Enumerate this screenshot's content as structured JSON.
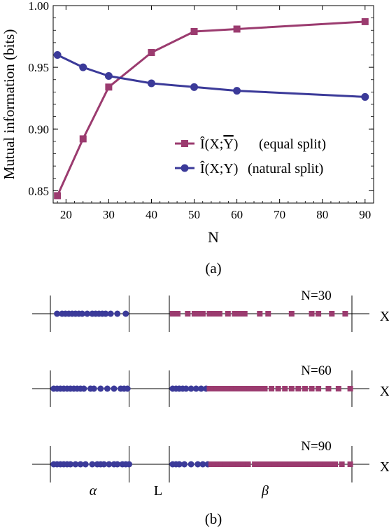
{
  "colors": {
    "equal_split": "#9b3b6f",
    "natural_split": "#3b3a99",
    "axis": "#000000"
  },
  "chart_data": [
    {
      "type": "line",
      "panel_label": "(a)",
      "xlabel": "N",
      "ylabel": "Mutual information (bits)",
      "xlim": [
        17,
        92
      ],
      "ylim": [
        0.84,
        1.0
      ],
      "x_ticks": [
        20,
        30,
        40,
        50,
        60,
        70,
        80,
        90
      ],
      "y_ticks": [
        0.85,
        0.9,
        0.95,
        1.0
      ],
      "x_tick_labels": [
        "20",
        "30",
        "40",
        "50",
        "60",
        "70",
        "80",
        "90"
      ],
      "y_tick_labels": [
        "0.85",
        "0.90",
        "0.95",
        "1.00"
      ],
      "legend_position": "center-right",
      "series": [
        {
          "name": "Î(X;Y̅) (equal split)",
          "legend_text": "(equal split)",
          "marker": "square",
          "color": "#9b3b6f",
          "x": [
            18,
            24,
            30,
            40,
            50,
            60,
            90
          ],
          "y": [
            0.846,
            0.892,
            0.934,
            0.962,
            0.979,
            0.981,
            0.987
          ]
        },
        {
          "name": "Î(X;Y) (natural split)",
          "legend_text": "(natural split)",
          "marker": "circle",
          "color": "#3b3a99",
          "x": [
            18,
            24,
            30,
            40,
            50,
            60,
            90
          ],
          "y": [
            0.96,
            0.95,
            0.943,
            0.937,
            0.934,
            0.931,
            0.926
          ]
        }
      ]
    },
    {
      "type": "scatter",
      "panel_label": "(b)",
      "axis_label": "X",
      "region_labels": {
        "alpha": "α",
        "L": "L",
        "beta": "β"
      },
      "boundaries": [
        0.0,
        0.235,
        0.355,
        0.9
      ],
      "rows": [
        {
          "label": "N=30",
          "circles": [
            0.02,
            0.035,
            0.045,
            0.055,
            0.065,
            0.075,
            0.085,
            0.095,
            0.11,
            0.125,
            0.135,
            0.145,
            0.155,
            0.165,
            0.18,
            0.2,
            0.225
          ],
          "squares": [
            0.365,
            0.38,
            0.41,
            0.43,
            0.44,
            0.455,
            0.475,
            0.49,
            0.505,
            0.53,
            0.55,
            0.565,
            0.58,
            0.625,
            0.65,
            0.72,
            0.78,
            0.8,
            0.84,
            0.88
          ]
        },
        {
          "label": "N=60",
          "circles": [
            0.01,
            0.02,
            0.03,
            0.04,
            0.05,
            0.06,
            0.07,
            0.08,
            0.09,
            0.1,
            0.12,
            0.13,
            0.15,
            0.17,
            0.19,
            0.21,
            0.22,
            0.23,
            0.365,
            0.375,
            0.385,
            0.395,
            0.405,
            0.42,
            0.435,
            0.45,
            0.465
          ],
          "squares": [
            0.475,
            0.485,
            0.495,
            0.505,
            0.515,
            0.525,
            0.535,
            0.545,
            0.555,
            0.565,
            0.58,
            0.595,
            0.61,
            0.625,
            0.64,
            0.66,
            0.68,
            0.7,
            0.72,
            0.74,
            0.76,
            0.78,
            0.8,
            0.83,
            0.86,
            0.895
          ]
        },
        {
          "label": "N=90",
          "circles": [
            0.01,
            0.02,
            0.03,
            0.04,
            0.05,
            0.06,
            0.075,
            0.09,
            0.105,
            0.125,
            0.14,
            0.15,
            0.16,
            0.175,
            0.19,
            0.2,
            0.215,
            0.225,
            0.235,
            0.365,
            0.375,
            0.385,
            0.4,
            0.42,
            0.44,
            0.455,
            0.47
          ],
          "squares": [
            0.48,
            0.49,
            0.5,
            0.51,
            0.52,
            0.53,
            0.545,
            0.56,
            0.575,
            0.59,
            0.61,
            0.625,
            0.64,
            0.655,
            0.67,
            0.685,
            0.7,
            0.715,
            0.73,
            0.745,
            0.76,
            0.775,
            0.79,
            0.805,
            0.82,
            0.835,
            0.85,
            0.87,
            0.895
          ]
        }
      ]
    }
  ]
}
